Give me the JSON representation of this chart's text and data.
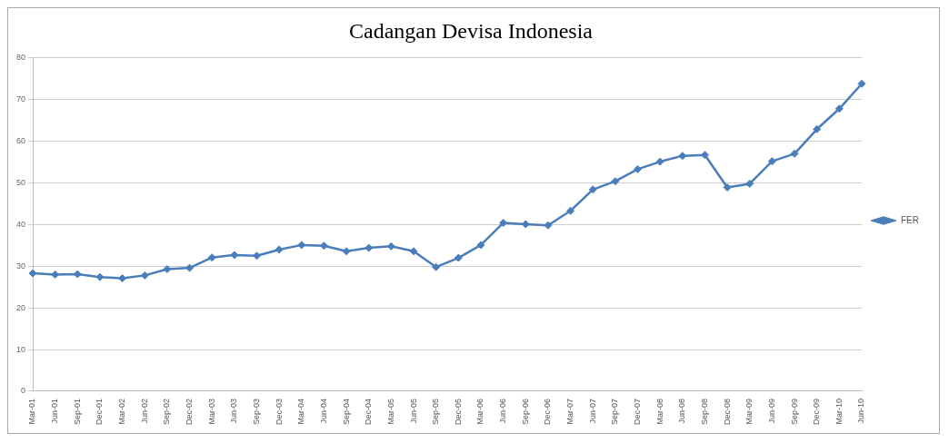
{
  "chart_data": {
    "type": "line",
    "title": "Cadangan Devisa Indonesia",
    "categories": [
      "Mar-01",
      "Jun-01",
      "Sep-01",
      "Dec-01",
      "Mar-02",
      "Jun-02",
      "Sep-02",
      "Dec-02",
      "Mar-03",
      "Jun-03",
      "Sep-03",
      "Dec-03",
      "Mar-04",
      "Jun-04",
      "Sep-04",
      "Dec-04",
      "Mar-05",
      "Jun-05",
      "Sep-05",
      "Dec-05",
      "Mar-06",
      "Jun-06",
      "Sep-06",
      "Dec-06",
      "Mar-07",
      "Jun-07",
      "Sep-07",
      "Dec-07",
      "Mar-08",
      "Jun-08",
      "Sep-08",
      "Dec-08",
      "Mar-09",
      "Jun-09",
      "Sep-09",
      "Dec-09",
      "Mar-10",
      "Jun-10"
    ],
    "series": [
      {
        "name": "FER",
        "color": "#4a7ebb",
        "values": [
          28.3,
          28.0,
          28.1,
          27.4,
          27.1,
          27.8,
          29.3,
          29.6,
          32.1,
          32.7,
          32.5,
          34.0,
          35.1,
          34.9,
          33.6,
          34.4,
          34.8,
          33.6,
          29.8,
          32.0,
          35.1,
          40.4,
          40.1,
          39.8,
          43.3,
          48.4,
          50.4,
          53.3,
          55.1,
          56.5,
          56.7,
          48.9,
          49.8,
          55.2,
          57.0,
          62.9,
          67.8,
          73.8
        ]
      }
    ],
    "ylim": [
      0,
      80
    ],
    "yticks": [
      0,
      10,
      20,
      30,
      40,
      50,
      60,
      70,
      80
    ],
    "grid": "y",
    "legend": "right",
    "marker": "diamond",
    "line_style": "solid"
  }
}
